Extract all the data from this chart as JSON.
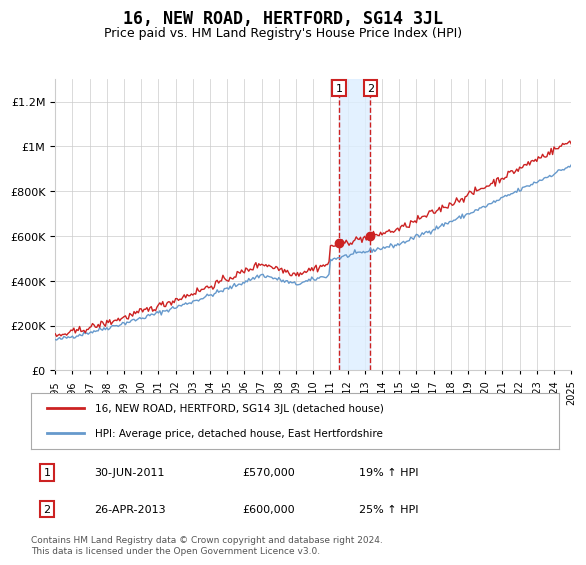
{
  "title": "16, NEW ROAD, HERTFORD, SG14 3JL",
  "subtitle": "Price paid vs. HM Land Registry's House Price Index (HPI)",
  "legend_line1": "16, NEW ROAD, HERTFORD, SG14 3JL (detached house)",
  "legend_line2": "HPI: Average price, detached house, East Hertfordshire",
  "annotation1_label": "1",
  "annotation1_date": "30-JUN-2011",
  "annotation1_price": "£570,000",
  "annotation1_hpi": "19% ↑ HPI",
  "annotation2_label": "2",
  "annotation2_date": "26-APR-2013",
  "annotation2_price": "£600,000",
  "annotation2_hpi": "25% ↑ HPI",
  "footnote": "Contains HM Land Registry data © Crown copyright and database right 2024.\nThis data is licensed under the Open Government Licence v3.0.",
  "hpi_line_color": "#6699cc",
  "price_line_color": "#cc2222",
  "annotation_box_color": "#cc2222",
  "shading_color": "#ddeeff",
  "background_color": "#ffffff",
  "grid_color": "#cccccc",
  "ylim": [
    0,
    1300000
  ],
  "yticks": [
    0,
    200000,
    400000,
    600000,
    800000,
    1000000,
    1200000
  ],
  "ytick_labels": [
    "£0",
    "£200K",
    "£400K",
    "£600K",
    "£800K",
    "£1M",
    "£1.2M"
  ],
  "x_start_year": 1995,
  "x_end_year": 2025,
  "sale1_year": 2011.5,
  "sale2_year": 2013.33,
  "sale1_price": 570000,
  "sale2_price": 600000
}
